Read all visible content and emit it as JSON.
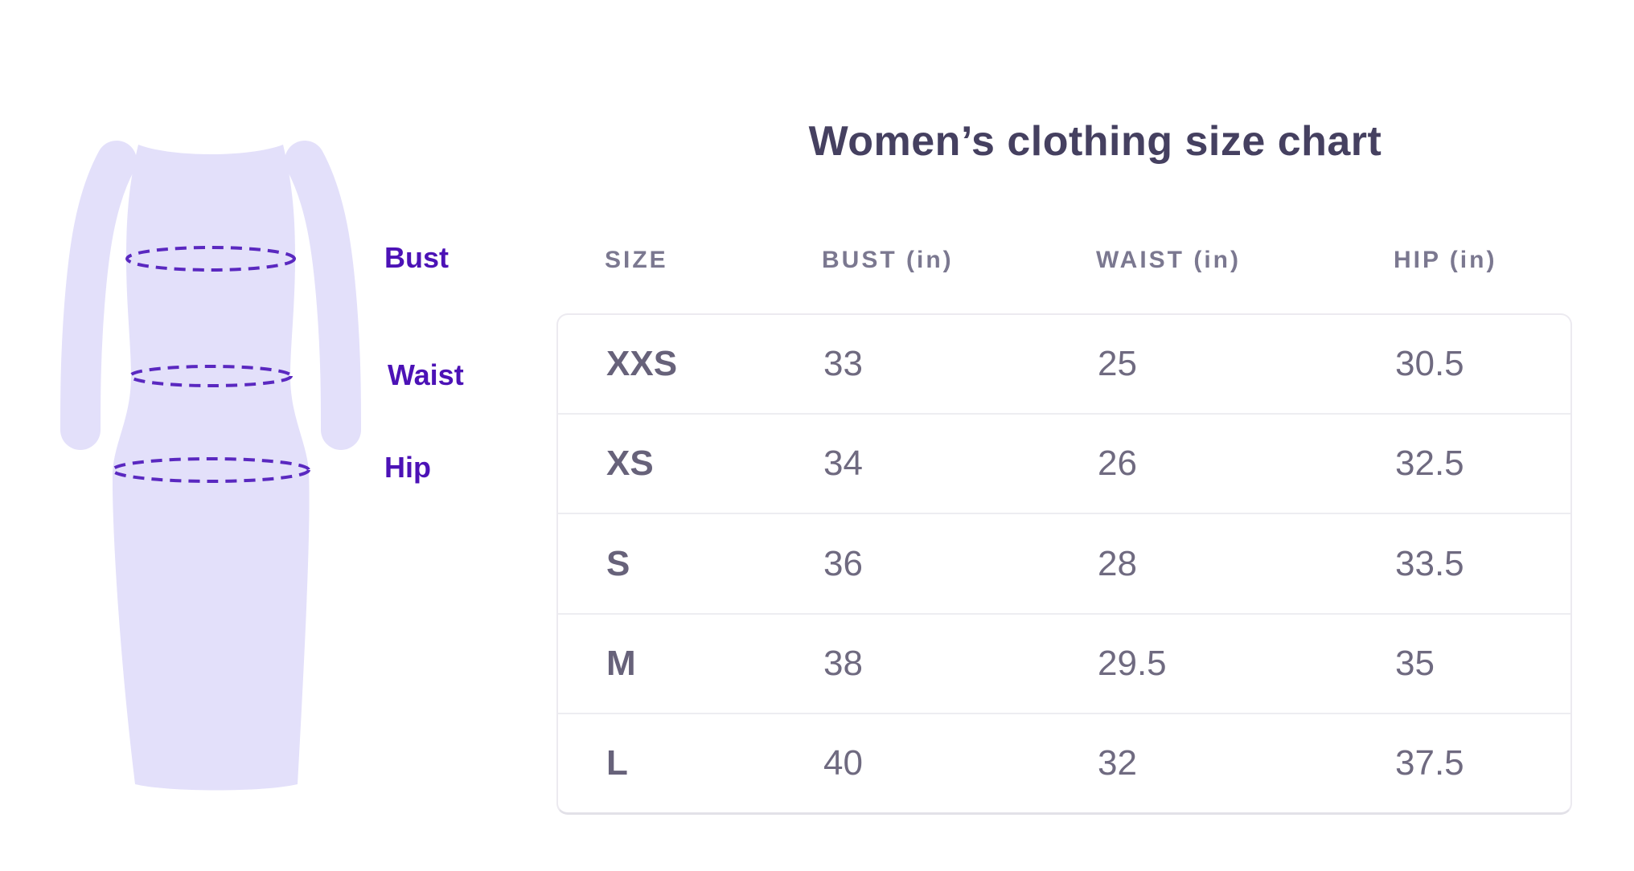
{
  "title": "Women’s clothing size chart",
  "diagram": {
    "labels": {
      "bust": "Bust",
      "waist": "Waist",
      "hip": "Hip"
    },
    "dress_fill": "#e3e0fa",
    "measure_line_color": "#5a28c0",
    "label_color": "#4c12b6"
  },
  "colors": {
    "title_text": "#454060",
    "header_text": "#7b7890",
    "size_text": "#67627a",
    "number_text": "#6f6a80",
    "card_border": "#eceaf0",
    "row_divider": "#ededf1",
    "background": "#ffffff"
  },
  "chart_data": {
    "type": "table",
    "title": "Women’s clothing size chart",
    "units": "in",
    "columns": [
      "SIZE",
      "BUST (in)",
      "WAIST (in)",
      "HIP (in)"
    ],
    "rows": [
      {
        "size": "XXS",
        "bust": "33",
        "waist": "25",
        "hip": "30.5"
      },
      {
        "size": "XS",
        "bust": "34",
        "waist": "26",
        "hip": "32.5"
      },
      {
        "size": "S",
        "bust": "36",
        "waist": "28",
        "hip": "33.5"
      },
      {
        "size": "M",
        "bust": "38",
        "waist": "29.5",
        "hip": "35"
      },
      {
        "size": "L",
        "bust": "40",
        "waist": "32",
        "hip": "37.5"
      }
    ]
  }
}
